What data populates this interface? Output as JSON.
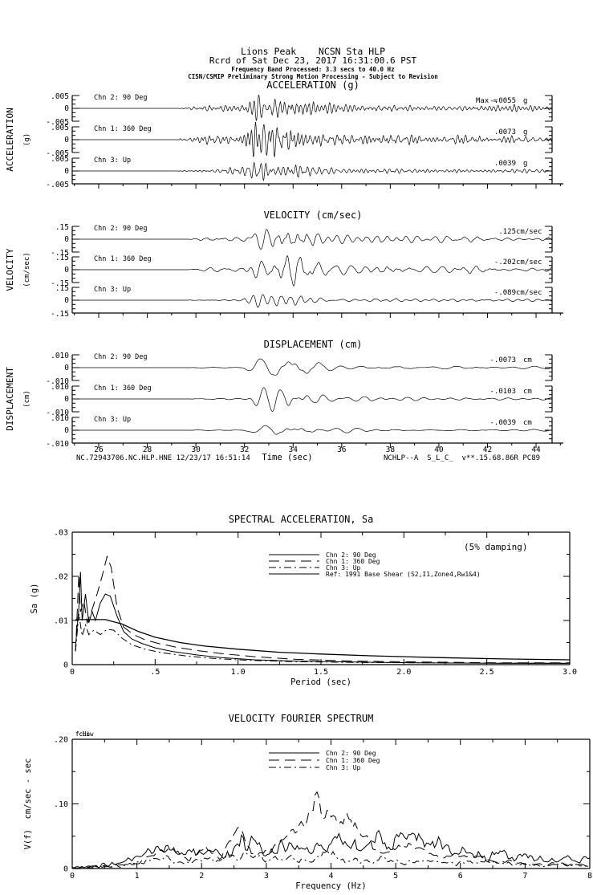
{
  "colors": {
    "ink": "#000000",
    "paper": "#ffffff"
  },
  "header": {
    "station_line": "Lions Peak    NCSN Sta HLP",
    "record_line": "Rcrd of Sat Dec 23, 2017 16:31:00.6 PST",
    "band_line": "Frequency Band Processed: 3.3 secs to 40.0 Hz",
    "disclaimer_line": "CISN/CSMIP Preliminary Strong Motion Processing - Subject to Revision"
  },
  "footer": {
    "left": "NC.72943706.NC.HLP.HNE 12/23/17 16:51:14",
    "right": "NCHLP--A  S_L_C_  v**.15.68.86R PC89"
  },
  "time_axis": {
    "label": "Time (sec)",
    "ticks": [
      26,
      28,
      30,
      32,
      34,
      36,
      38,
      40,
      42,
      44
    ],
    "minor_step": 1
  },
  "chart_data": [
    {
      "id": "acceleration",
      "type": "line",
      "subtype": "seismogram",
      "title": "ACCELERATION (g)",
      "side_label": "ACCELERATION",
      "side_sublabel": "(g)",
      "unit": "g",
      "scale_value": 0.005,
      "scale_label_top": ".005",
      "scale_label_zero": "0",
      "scale_label_bottom": "-.005",
      "time_range_sec": [
        24.9,
        44.7
      ],
      "event_onset_sec": 29.4,
      "strong_shaking_sec": [
        31.9,
        35.5
      ],
      "channels": [
        {
          "label": "Chn 2: 90 Deg",
          "peak": -0.0055,
          "peak_text": "-.0055",
          "max_prefix": "Max ="
        },
        {
          "label": "Chn 1: 360 Deg",
          "peak": 0.0073,
          "peak_text": ".0073"
        },
        {
          "label": "Chn 3: Up",
          "peak": 0.0039,
          "peak_text": ".0039"
        }
      ]
    },
    {
      "id": "velocity",
      "type": "line",
      "subtype": "seismogram",
      "title": "VELOCITY (cm/sec)",
      "side_label": "VELOCITY",
      "side_sublabel": "(cm/sec)",
      "unit": "cm/sec",
      "scale_value": 0.15,
      "scale_label_top": ".15",
      "scale_label_zero": "0",
      "scale_label_bottom": "-.15",
      "time_range_sec": [
        24.9,
        44.7
      ],
      "event_onset_sec": 29.7,
      "strong_shaking_sec": [
        31.9,
        35.5
      ],
      "channels": [
        {
          "label": "Chn 2: 90 Deg",
          "peak": 0.125,
          "peak_text": ".125"
        },
        {
          "label": "Chn 1: 360 Deg",
          "peak": -0.202,
          "peak_text": "-.202"
        },
        {
          "label": "Chn 3: Up",
          "peak": -0.089,
          "peak_text": "-.089"
        }
      ]
    },
    {
      "id": "displacement",
      "type": "line",
      "subtype": "seismogram",
      "title": "DISPLACEMENT (cm)",
      "side_label": "DISPLACEMENT",
      "side_sublabel": "(cm)",
      "unit": "cm",
      "scale_value": 0.01,
      "scale_label_top": ".010",
      "scale_label_zero": "0",
      "scale_label_bottom": "-.010",
      "time_range_sec": [
        24.9,
        44.7
      ],
      "event_onset_sec": 29.8,
      "strong_shaking_sec": [
        31.9,
        35.5
      ],
      "channels": [
        {
          "label": "Chn 2: 90 Deg",
          "peak": -0.0073,
          "peak_text": "-.0073"
        },
        {
          "label": "Chn 1: 360 Deg",
          "peak": -0.0103,
          "peak_text": "-.0103"
        },
        {
          "label": "Chn 3: Up",
          "peak": -0.0039,
          "peak_text": "-.0039"
        }
      ]
    },
    {
      "id": "spectral_acceleration",
      "type": "line",
      "title": "SPECTRAL ACCELERATION, Sa",
      "annotation": "(5% damping)",
      "xlabel": "Period (sec)",
      "ylabel": "Sa (g)",
      "xlim": [
        0,
        3.0
      ],
      "ylim": [
        0,
        0.03
      ],
      "xticks_major": [
        0,
        0.5,
        1.0,
        1.5,
        2.0,
        2.5,
        3.0
      ],
      "xtick_labels": [
        "0",
        ".5",
        "1.0",
        "1.5",
        "2.0",
        "2.5",
        "3.0"
      ],
      "xticks_minor_step": 0.25,
      "yticks_major": [
        0,
        0.01,
        0.02,
        0.03
      ],
      "ytick_labels": [
        "0",
        ".01",
        ".02",
        ".03"
      ],
      "yticks_minor_step": 0.005,
      "grid": false,
      "legend_position": "inside-top-center",
      "series": [
        {
          "name": "Chn 2: 90 Deg",
          "style": "solid",
          "points": [
            [
              0.02,
              0.004
            ],
            [
              0.04,
              0.013
            ],
            [
              0.05,
              0.021
            ],
            [
              0.06,
              0.01
            ],
            [
              0.08,
              0.016
            ],
            [
              0.1,
              0.0095
            ],
            [
              0.12,
              0.012
            ],
            [
              0.14,
              0.01
            ],
            [
              0.17,
              0.014
            ],
            [
              0.2,
              0.016
            ],
            [
              0.23,
              0.0155
            ],
            [
              0.27,
              0.011
            ],
            [
              0.31,
              0.0075
            ],
            [
              0.36,
              0.0058
            ],
            [
              0.42,
              0.0048
            ],
            [
              0.5,
              0.0038
            ],
            [
              0.6,
              0.003
            ],
            [
              0.75,
              0.0022
            ],
            [
              0.9,
              0.0016
            ],
            [
              1.1,
              0.0011
            ],
            [
              1.35,
              0.0008
            ],
            [
              1.7,
              0.0006
            ],
            [
              2.1,
              0.0004
            ],
            [
              2.6,
              0.0003
            ],
            [
              3.0,
              0.0003
            ]
          ]
        },
        {
          "name": "Chn 1: 360 Deg",
          "style": "longdash",
          "points": [
            [
              0.02,
              0.003
            ],
            [
              0.04,
              0.0205
            ],
            [
              0.05,
              0.012
            ],
            [
              0.07,
              0.0145
            ],
            [
              0.09,
              0.0095
            ],
            [
              0.12,
              0.0125
            ],
            [
              0.15,
              0.016
            ],
            [
              0.18,
              0.02
            ],
            [
              0.21,
              0.0245
            ],
            [
              0.235,
              0.022
            ],
            [
              0.27,
              0.013
            ],
            [
              0.31,
              0.0085
            ],
            [
              0.37,
              0.0068
            ],
            [
              0.44,
              0.0056
            ],
            [
              0.52,
              0.0048
            ],
            [
              0.62,
              0.004
            ],
            [
              0.75,
              0.0032
            ],
            [
              0.9,
              0.0025
            ],
            [
              1.1,
              0.0018
            ],
            [
              1.35,
              0.0012
            ],
            [
              1.7,
              0.0008
            ],
            [
              2.1,
              0.0006
            ],
            [
              2.6,
              0.0004
            ],
            [
              3.0,
              0.0004
            ]
          ]
        },
        {
          "name": "Chn 3: Up",
          "style": "dashdot",
          "points": [
            [
              0.02,
              0.003
            ],
            [
              0.04,
              0.0115
            ],
            [
              0.06,
              0.0065
            ],
            [
              0.08,
              0.009
            ],
            [
              0.1,
              0.0068
            ],
            [
              0.13,
              0.0078
            ],
            [
              0.17,
              0.0068
            ],
            [
              0.21,
              0.008
            ],
            [
              0.25,
              0.0078
            ],
            [
              0.3,
              0.006
            ],
            [
              0.36,
              0.0045
            ],
            [
              0.44,
              0.0035
            ],
            [
              0.54,
              0.0027
            ],
            [
              0.68,
              0.002
            ],
            [
              0.85,
              0.0014
            ],
            [
              1.05,
              0.001
            ],
            [
              1.3,
              0.0007
            ],
            [
              1.7,
              0.0005
            ],
            [
              2.2,
              0.0004
            ],
            [
              3.0,
              0.0003
            ]
          ]
        },
        {
          "name": "Ref: 1991 Base Shear (S2,I1,Zone4,Rw1&4)",
          "style": "solid",
          "width": 1.3,
          "points": [
            [
              0.02,
              0.0102
            ],
            [
              0.1,
              0.0102
            ],
            [
              0.2,
              0.0102
            ],
            [
              0.3,
              0.0092
            ],
            [
              0.4,
              0.0075
            ],
            [
              0.5,
              0.0062
            ],
            [
              0.65,
              0.005
            ],
            [
              0.8,
              0.0042
            ],
            [
              1.0,
              0.0035
            ],
            [
              1.25,
              0.0028
            ],
            [
              1.5,
              0.0024
            ],
            [
              1.8,
              0.002
            ],
            [
              2.2,
              0.0016
            ],
            [
              2.6,
              0.0013
            ],
            [
              3.0,
              0.0011
            ]
          ]
        }
      ]
    },
    {
      "id": "velocity_fourier_spectrum",
      "type": "line",
      "title": "VELOCITY FOURIER SPECTRUM",
      "xlabel": "Frequency (Hz)",
      "ylabel": "V(f)  cm/sec - sec",
      "corner_markers": [
        "fcLow",
        "fcHi"
      ],
      "xlim": [
        0,
        8
      ],
      "ylim": [
        0,
        0.2
      ],
      "xticks_major": [
        0,
        1,
        2,
        3,
        4,
        5,
        6,
        7,
        8
      ],
      "xtick_labels": [
        "0",
        "1",
        "2",
        "3",
        "4",
        "5",
        "6",
        "7",
        "8"
      ],
      "xticks_minor_step": 0.5,
      "yticks_major": [
        0,
        0.1,
        0.2
      ],
      "ytick_labels": [
        "0",
        ".10",
        ".20"
      ],
      "yticks_minor_step": 0.05,
      "grid": false,
      "legend_position": "inside-top-center",
      "series": [
        {
          "name": "Chn 2: 90 Deg",
          "style": "solid",
          "jitter": {
            "rel": 0.5,
            "abs": 0.005
          },
          "points": [
            [
              0,
              0
            ],
            [
              0.5,
              0.005
            ],
            [
              0.9,
              0.012
            ],
            [
              1.2,
              0.025
            ],
            [
              1.45,
              0.04
            ],
            [
              1.6,
              0.02
            ],
            [
              1.8,
              0.03
            ],
            [
              2.0,
              0.025
            ],
            [
              2.2,
              0.035
            ],
            [
              2.45,
              0.02
            ],
            [
              2.6,
              0.035
            ],
            [
              2.8,
              0.04
            ],
            [
              3.0,
              0.02
            ],
            [
              3.2,
              0.035
            ],
            [
              3.5,
              0.03
            ],
            [
              3.7,
              0.04
            ],
            [
              3.9,
              0.025
            ],
            [
              4.1,
              0.04
            ],
            [
              4.3,
              0.042
            ],
            [
              4.5,
              0.03
            ],
            [
              4.7,
              0.042
            ],
            [
              4.9,
              0.035
            ],
            [
              5.1,
              0.045
            ],
            [
              5.3,
              0.048
            ],
            [
              5.5,
              0.035
            ],
            [
              5.7,
              0.04
            ],
            [
              5.9,
              0.025
            ],
            [
              6.1,
              0.03
            ],
            [
              6.3,
              0.02
            ],
            [
              6.6,
              0.025
            ],
            [
              6.9,
              0.02
            ],
            [
              7.2,
              0.018
            ],
            [
              7.5,
              0.015
            ],
            [
              8.0,
              0.012
            ]
          ]
        },
        {
          "name": "Chn 1: 360 Deg",
          "style": "longdash",
          "jitter": {
            "rel": 0.28,
            "abs": 0.003
          },
          "points": [
            [
              0,
              0
            ],
            [
              0.5,
              0.004
            ],
            [
              1.0,
              0.008
            ],
            [
              1.5,
              0.03
            ],
            [
              1.8,
              0.012
            ],
            [
              2.1,
              0.035
            ],
            [
              2.3,
              0.015
            ],
            [
              2.55,
              0.065
            ],
            [
              2.8,
              0.02
            ],
            [
              3.1,
              0.03
            ],
            [
              3.4,
              0.05
            ],
            [
              3.75,
              0.1
            ],
            [
              3.95,
              0.085
            ],
            [
              4.1,
              0.06
            ],
            [
              4.25,
              0.083
            ],
            [
              4.5,
              0.05
            ],
            [
              4.8,
              0.02
            ],
            [
              5.1,
              0.04
            ],
            [
              5.4,
              0.035
            ],
            [
              5.7,
              0.015
            ],
            [
              6.0,
              0.02
            ],
            [
              6.5,
              0.012
            ],
            [
              7.0,
              0.008
            ],
            [
              7.5,
              0.006
            ],
            [
              8.0,
              0.004
            ]
          ]
        },
        {
          "name": "Chn 3: Up",
          "style": "dashdot",
          "jitter": {
            "rel": 0.5,
            "abs": 0.004
          },
          "points": [
            [
              0,
              0
            ],
            [
              0.8,
              0.005
            ],
            [
              1.2,
              0.012
            ],
            [
              1.5,
              0.018
            ],
            [
              1.8,
              0.01
            ],
            [
              2.1,
              0.02
            ],
            [
              2.4,
              0.015
            ],
            [
              2.7,
              0.022
            ],
            [
              3.0,
              0.012
            ],
            [
              3.3,
              0.018
            ],
            [
              3.6,
              0.01
            ],
            [
              3.9,
              0.022
            ],
            [
              4.2,
              0.015
            ],
            [
              4.5,
              0.01
            ],
            [
              4.8,
              0.015
            ],
            [
              5.1,
              0.01
            ],
            [
              5.5,
              0.012
            ],
            [
              6.0,
              0.008
            ],
            [
              6.5,
              0.01
            ],
            [
              7.0,
              0.006
            ],
            [
              7.5,
              0.007
            ],
            [
              8.0,
              0.005
            ]
          ]
        }
      ]
    }
  ]
}
